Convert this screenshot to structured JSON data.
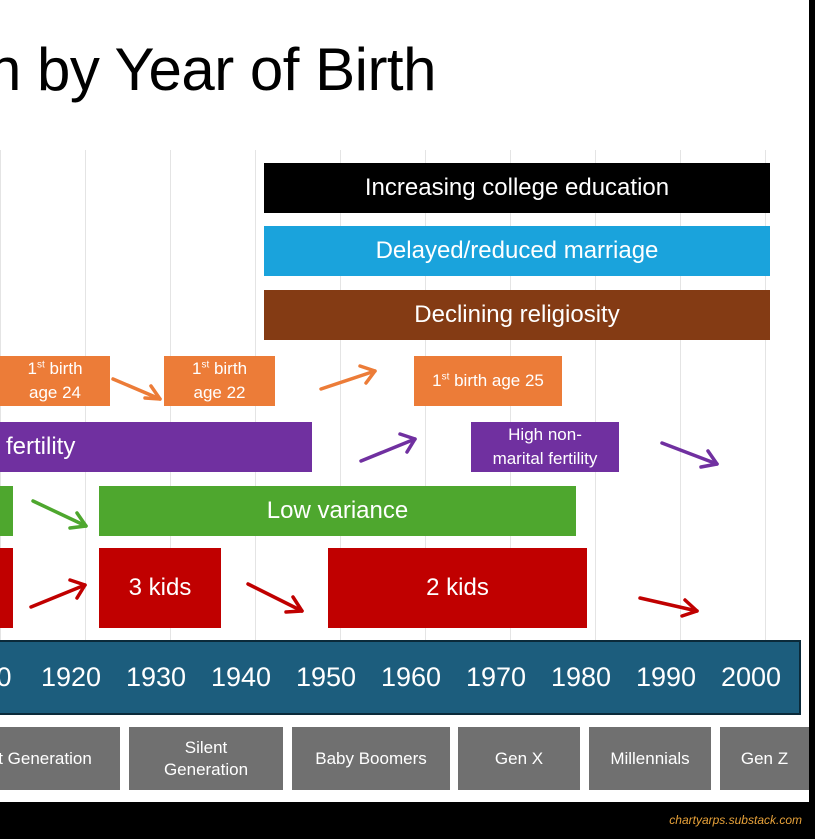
{
  "title": "n by Year of Birth",
  "bars": {
    "college": "Increasing college education",
    "marriage": "Delayed/reduced marriage",
    "religiosity": "Declining religiosity",
    "birth24_sup": "st",
    "birth24_a": "birth",
    "birth24_b": "age 24",
    "birth22_sup": "st",
    "birth22_a": "birth",
    "birth22_b": "age 22",
    "birth25_sup": "st",
    "birth25_rest": "birth age 25",
    "fertility": "fertility",
    "nonmarital_a": "High non-",
    "nonmarital_b": "marital fertility",
    "low_variance": "Low variance",
    "three_kids": "3 kids",
    "two_kids": "2 kids"
  },
  "timeline": {
    "years": [
      "0",
      "1920",
      "1930",
      "1940",
      "1950",
      "1960",
      "1970",
      "1980",
      "1990",
      "2000"
    ]
  },
  "generations": {
    "g1": "t Generation",
    "silent_a": "Silent",
    "silent_b": "Generation",
    "boomers": "Baby Boomers",
    "genx": "Gen X",
    "millennials": "Millennials",
    "genz": "Gen Z"
  },
  "credit": "chartyarps.substack.com",
  "colors": {
    "black": "#000000",
    "blue": "#1aa3dc",
    "brown": "#843b14",
    "orange": "#ec7c38",
    "purple": "#7030a0",
    "green": "#4ea72e",
    "red": "#c00000",
    "timeline": "#1c5d7d",
    "gray": "#707070",
    "credit": "#e8a23a"
  }
}
